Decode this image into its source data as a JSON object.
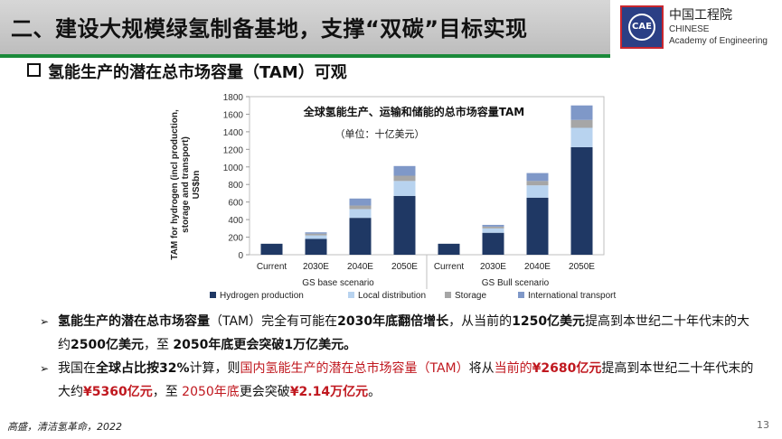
{
  "header": {
    "title": "二、建设大规模绿氢制备基地，支撑“双碳”目标实现"
  },
  "logo": {
    "emblem_text": "CAE",
    "cn": "中国工程院",
    "en1": "CHINESE",
    "en2": "Academy of Engineering"
  },
  "section": {
    "title": "氢能生产的潜在总市场容量（TAM）可观"
  },
  "colors": {
    "title_bar_rule": "#1a8a3a",
    "hydrogen": "#1f3864",
    "local": "#b8d3ef",
    "storage": "#a6a6a6",
    "transport": "#7f98c8",
    "highlight_red": "#c0181f"
  },
  "chart_data": {
    "type": "bar",
    "stacked": true,
    "title": "全球氢能生产、运输和储能的总市场容量TAM",
    "subtitle": "（单位：十亿美元）",
    "ylabel": "TAM for hydrogen (incl production, storage and transport) US$bn",
    "ylim": [
      0,
      1800
    ],
    "yticks": [
      "0",
      "200",
      "400",
      "600",
      "800",
      "1000",
      "1200",
      "1400",
      "1600",
      "1800"
    ],
    "groups": [
      "GS base scenario",
      "GS Bull scenario"
    ],
    "categories": [
      "Current",
      "2030E",
      "2040E",
      "2050E",
      "Current",
      "2030E",
      "2040E",
      "2050E"
    ],
    "series": [
      {
        "name": "Hydrogen production",
        "color": "#1f3864",
        "values": [
          125,
          180,
          420,
          670,
          125,
          250,
          650,
          1225
        ]
      },
      {
        "name": "Local distribution",
        "color": "#b8d3ef",
        "values": [
          0,
          40,
          100,
          170,
          0,
          50,
          140,
          220
        ]
      },
      {
        "name": "Storage",
        "color": "#a6a6a6",
        "values": [
          0,
          20,
          40,
          60,
          0,
          20,
          50,
          90
        ]
      },
      {
        "name": "International transport",
        "color": "#7f98c8",
        "values": [
          0,
          15,
          80,
          110,
          0,
          20,
          90,
          165
        ]
      }
    ],
    "legend_position": "bottom"
  },
  "bullets": [
    [
      {
        "text": "氢能生产的潜在总市场容量",
        "style": "b"
      },
      {
        "text": "（TAM）完全有可能在",
        "style": ""
      },
      {
        "text": "2030年底翻倍增长",
        "style": "b"
      },
      {
        "text": "，从当前的",
        "style": ""
      },
      {
        "text": "1250亿美元",
        "style": "b"
      },
      {
        "text": "提高到本世纪二十年代末的大约",
        "style": ""
      },
      {
        "text": "2500亿美元",
        "style": "b"
      },
      {
        "text": "，至 ",
        "style": ""
      },
      {
        "text": "2050年底更会突破1万亿美元。",
        "style": "b"
      }
    ],
    [
      {
        "text": "我国在",
        "style": ""
      },
      {
        "text": "全球占比按32%",
        "style": "b"
      },
      {
        "text": "计算，则",
        "style": ""
      },
      {
        "text": "国内氢能生产的潜在总市场容量（TAM）",
        "style": "red"
      },
      {
        "text": "将从",
        "style": ""
      },
      {
        "text": "当前的",
        "style": "red"
      },
      {
        "text": "¥2680亿元",
        "style": "b red"
      },
      {
        "text": "提高到本世纪二十年代末的大约",
        "style": ""
      },
      {
        "text": "¥5360亿元",
        "style": "b red"
      },
      {
        "text": "，至 ",
        "style": ""
      },
      {
        "text": "2050年底",
        "style": "red"
      },
      {
        "text": "更会突破",
        "style": ""
      },
      {
        "text": "¥2.14万亿元",
        "style": "b red"
      },
      {
        "text": "。",
        "style": ""
      }
    ]
  ],
  "footer": {
    "source": "高盛，清洁氢革命，2022",
    "page": "13"
  }
}
